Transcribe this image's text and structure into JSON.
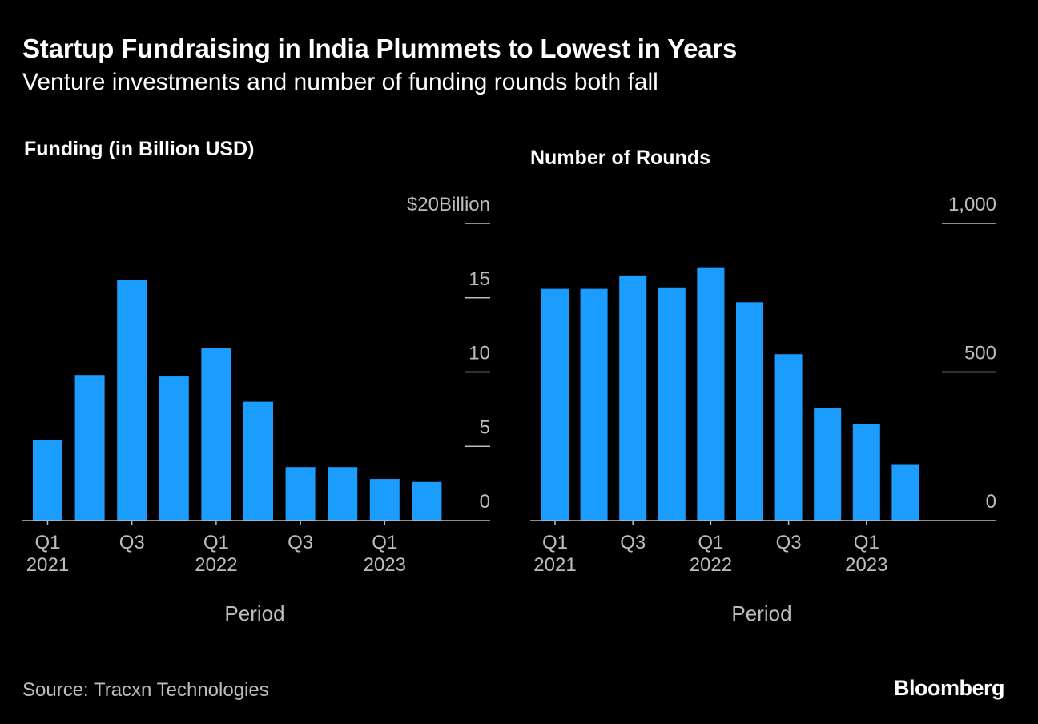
{
  "header": {
    "title": "Startup Fundraising in India Plummets to Lowest in Years",
    "subtitle": "Venture investments and number of funding rounds both fall"
  },
  "colors": {
    "background": "#000000",
    "bar": "#1a9dff",
    "text": "#ffffff",
    "muted": "#bdbdbd"
  },
  "chart_data": [
    {
      "type": "bar",
      "title": "Funding (in Billion USD)",
      "xlabel": "Period",
      "ylabel": "",
      "categories": [
        "Q1 2021",
        "Q2 2021",
        "Q3 2021",
        "Q4 2021",
        "Q1 2022",
        "Q2 2022",
        "Q3 2022",
        "Q4 2022",
        "Q1 2023",
        "Q2 2023"
      ],
      "values": [
        5.4,
        9.8,
        16.2,
        9.7,
        11.6,
        8.0,
        3.6,
        3.6,
        2.8,
        2.6
      ],
      "ylim": [
        0,
        20
      ],
      "yticks": [
        {
          "value": 20,
          "label": "$20Billion"
        },
        {
          "value": 15,
          "label": "15"
        },
        {
          "value": 10,
          "label": "10"
        },
        {
          "value": 5,
          "label": "5"
        },
        {
          "value": 0,
          "label": "0"
        }
      ],
      "xticks": [
        {
          "index": 0,
          "label": "Q1",
          "sublabel": "2021"
        },
        {
          "index": 2,
          "label": "Q3",
          "sublabel": ""
        },
        {
          "index": 4,
          "label": "Q1",
          "sublabel": "2022"
        },
        {
          "index": 6,
          "label": "Q3",
          "sublabel": ""
        },
        {
          "index": 8,
          "label": "Q1",
          "sublabel": "2023"
        }
      ]
    },
    {
      "type": "bar",
      "title": "Number of Rounds",
      "xlabel": "Period",
      "ylabel": "",
      "categories": [
        "Q1 2021",
        "Q2 2021",
        "Q3 2021",
        "Q4 2021",
        "Q1 2022",
        "Q2 2022",
        "Q3 2022",
        "Q4 2022",
        "Q1 2023",
        "Q2 2023"
      ],
      "values": [
        780,
        780,
        825,
        785,
        850,
        735,
        560,
        380,
        325,
        190
      ],
      "ylim": [
        0,
        1000
      ],
      "yticks": [
        {
          "value": 1000,
          "label": "1,000"
        },
        {
          "value": 500,
          "label": "500"
        },
        {
          "value": 0,
          "label": "0"
        }
      ],
      "xticks": [
        {
          "index": 0,
          "label": "Q1",
          "sublabel": "2021"
        },
        {
          "index": 2,
          "label": "Q3",
          "sublabel": ""
        },
        {
          "index": 4,
          "label": "Q1",
          "sublabel": "2022"
        },
        {
          "index": 6,
          "label": "Q3",
          "sublabel": ""
        },
        {
          "index": 8,
          "label": "Q1",
          "sublabel": "2023"
        }
      ]
    }
  ],
  "footer": {
    "source": "Source: Tracxn Technologies",
    "brand": "Bloomberg"
  }
}
